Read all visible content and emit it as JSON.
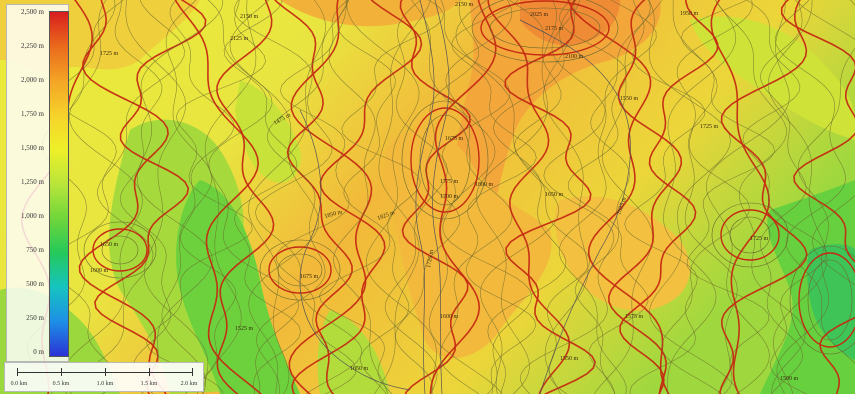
{
  "legend": {
    "labels": [
      "2,500 m",
      "2,250 m",
      "2,000 m",
      "1,750 m",
      "1,500 m",
      "1,250 m",
      "1,000 m",
      "750 m",
      "500 m",
      "250 m",
      "0 m"
    ],
    "colors": [
      "#d81e1e",
      "#ea6a1c",
      "#f4a425",
      "#f6d22a",
      "#eef028",
      "#b9e53a",
      "#70d63a",
      "#24c95a",
      "#16c4c0",
      "#1e8fe6",
      "#2b33d6"
    ]
  },
  "scale_bar": {
    "labels": [
      "0.0 km",
      "0.5 km",
      "1.0 km",
      "1.5 km",
      "2.0 km"
    ]
  },
  "contour_labels": [
    "2150 m",
    "2125 m",
    "2150 m",
    "2025 m",
    "2175 m",
    "2100 m",
    "1950 m",
    "1725 m",
    "1725 m",
    "1550 m",
    "1675 m",
    "1775 m",
    "1800 m",
    "1700 m",
    "1825 m",
    "1850 m",
    "1675 m",
    "1650 m",
    "1600 m",
    "1475 m",
    "1650 m",
    "1725 m",
    "1600 m",
    "1575 m",
    "1550 m",
    "1525 m",
    "1500 m",
    "1725 m",
    "1650 m",
    "1625 m"
  ],
  "colors": {
    "contour_major": "#c42a12",
    "contour_minor": "#6b6a2e",
    "trail": "#555555"
  }
}
